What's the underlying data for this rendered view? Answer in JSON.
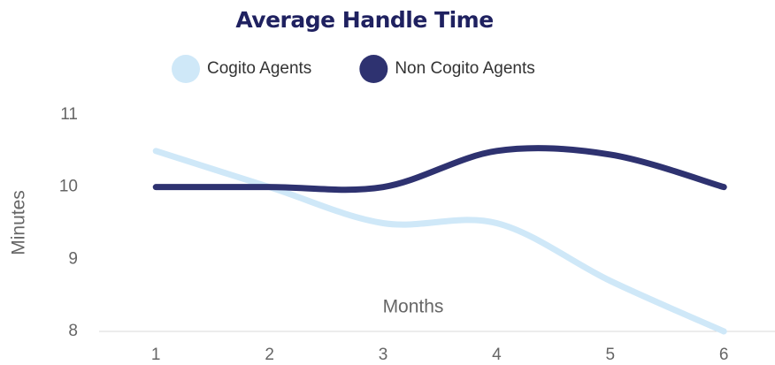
{
  "chart_data": {
    "type": "line",
    "title": "Average Handle Time",
    "x_label": "Months",
    "y_label": "Minutes",
    "x": [
      1,
      2,
      3,
      4,
      5,
      6
    ],
    "series": [
      {
        "name": "Cogito Agents",
        "color": "#cfe8f8",
        "values": [
          10.5,
          10.0,
          9.5,
          9.5,
          8.7,
          8.0
        ]
      },
      {
        "name": "Non Cogito Agents",
        "color": "#2e3270",
        "values": [
          10.0,
          10.0,
          10.0,
          10.5,
          10.45,
          10.0
        ]
      }
    ],
    "xlim": [
      0.5,
      6.45
    ],
    "xticks": [
      1,
      2,
      3,
      4,
      5,
      6
    ],
    "ylim": [
      8,
      11
    ],
    "yticks": [
      8,
      9,
      10,
      11
    ],
    "legend": "top",
    "grid": false
  }
}
